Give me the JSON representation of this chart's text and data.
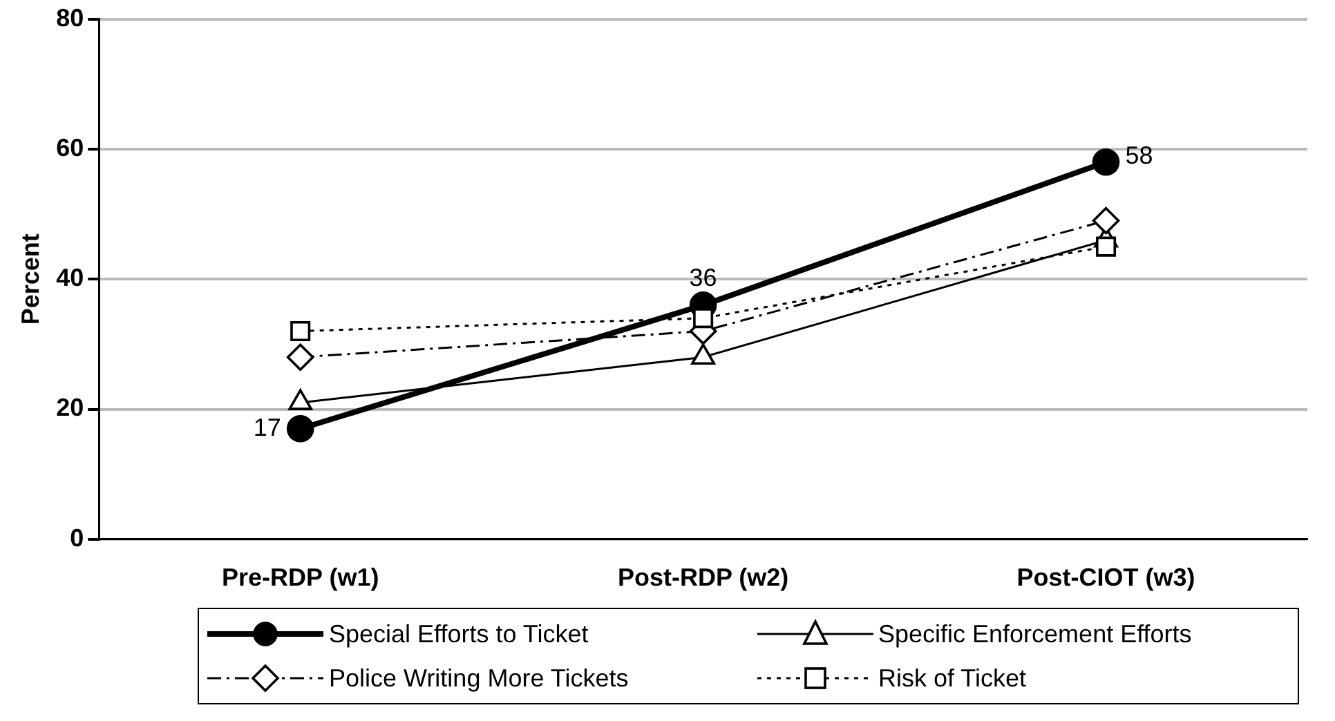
{
  "chart_data": {
    "type": "line",
    "ylabel": "Percent",
    "categories": [
      "Pre-RDP (w1)",
      "Post-RDP (w2)",
      "Post-CIOT (w3)"
    ],
    "ylim": [
      0,
      80
    ],
    "yticks": [
      0,
      20,
      40,
      60,
      80
    ],
    "grid": "y",
    "legend": "bottom",
    "series": [
      {
        "name": "Special Efforts to Ticket",
        "color": "#000000",
        "marker": "circle",
        "line_style": "solid",
        "values": [
          17,
          36,
          58
        ],
        "value_labels": [
          "17",
          "36",
          "58"
        ]
      },
      {
        "name": "Specific Enforcement Efforts",
        "color": "#000000",
        "marker": "triangle",
        "line_style": "solid",
        "values": [
          21,
          28,
          46
        ]
      },
      {
        "name": "Police Writing More Tickets",
        "color": "#000000",
        "marker": "diamond",
        "line_style": "dashed",
        "values": [
          28,
          32,
          49
        ]
      },
      {
        "name": "Risk of Ticket",
        "color": "#000000",
        "marker": "square",
        "line_style": "dotted",
        "values": [
          32,
          34,
          45
        ]
      }
    ]
  }
}
